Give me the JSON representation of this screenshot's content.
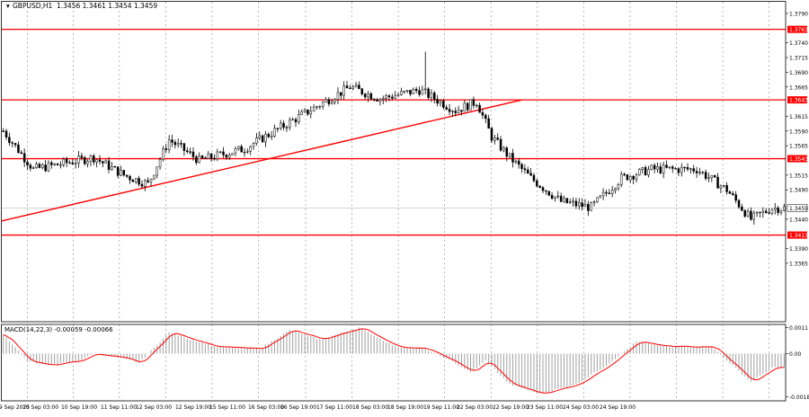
{
  "header": {
    "symbol_label": "GBPUSD,H1",
    "ohlc_label": "1.3456 1.3461 1.3454 1.3459"
  },
  "indicator": {
    "label": "MACD(14,22,3) -0.00059 -0.00066"
  },
  "colors": {
    "level": "#ff0000",
    "candle": "#000000",
    "grid": "#8c8c8c",
    "price_badge": "#ffffff",
    "level_badge": "#ff0000",
    "signal": "#ff0000",
    "histogram": "#a0a0a0"
  },
  "chart_data": [
    {
      "type": "candlestick",
      "symbol": "GBPUSD",
      "timeframe": "H1",
      "ylim": [
        1.3365,
        1.379
      ],
      "y_ticks": [
        1.379,
        1.374,
        1.3715,
        1.369,
        1.3665,
        1.3615,
        1.359,
        1.3565,
        1.3515,
        1.349,
        1.344,
        1.339,
        1.3365
      ],
      "x_ticks": [
        "9 Sep 2025",
        "10 Sep 03:00",
        "10 Sep 19:00",
        "11 Sep 11:00",
        "12 Sep 03:00",
        "12 Sep 19:00",
        "15 Sep 11:00",
        "16 Sep 03:00",
        "16 Sep 19:00",
        "17 Sep 11:00",
        "18 Sep 03:00",
        "18 Sep 19:00",
        "19 Sep 11:00",
        "22 Sep 03:00",
        "22 Sep 19:00",
        "23 Sep 11:00",
        "24 Sep 03:00",
        "24 Sep 19:00"
      ],
      "current_price": 1.3459,
      "current_price_label": "1.3459",
      "levels": [
        {
          "value": 1.3763,
          "label": "1.3763"
        },
        {
          "value": 1.3643,
          "label": "1.3643"
        },
        {
          "value": 1.3543,
          "label": "1.3543"
        },
        {
          "value": 1.3413,
          "label": "1.3413"
        }
      ],
      "trendline": {
        "from": {
          "bar": 0,
          "price": 1.3437
        },
        "to": {
          "bar": 172,
          "price": 1.3643
        }
      },
      "waypoints": [
        [
          0,
          1.359
        ],
        [
          10,
          1.3525
        ],
        [
          30,
          1.3545
        ],
        [
          40,
          1.3515
        ],
        [
          48,
          1.35
        ],
        [
          55,
          1.3575
        ],
        [
          65,
          1.354
        ],
        [
          80,
          1.356
        ],
        [
          95,
          1.3605
        ],
        [
          115,
          1.3665
        ],
        [
          125,
          1.3645
        ],
        [
          138,
          1.366
        ],
        [
          150,
          1.3625
        ],
        [
          157,
          1.364
        ],
        [
          162,
          1.358
        ],
        [
          168,
          1.3545
        ],
        [
          175,
          1.351
        ],
        [
          185,
          1.347
        ],
        [
          195,
          1.346
        ],
        [
          205,
          1.351
        ],
        [
          215,
          1.3525
        ],
        [
          230,
          1.3525
        ],
        [
          240,
          1.349
        ],
        [
          248,
          1.344
        ],
        [
          255,
          1.3459
        ]
      ],
      "spikes": [
        {
          "bar": 140,
          "high": 1.3725
        }
      ]
    },
    {
      "type": "macd",
      "label": "MACD(14,22,3)",
      "macd_value": -0.00059,
      "signal_value": -0.00066,
      "ylim": [
        -0.00182,
        0.0011
      ],
      "y_ticks": [
        {
          "value": 0.0011,
          "label": "0.0011"
        },
        {
          "value": 0.0,
          "label": "0.00"
        },
        {
          "value": -0.00182,
          "label": "-0.00182"
        }
      ],
      "waypoints": [
        [
          0,
          0.0008
        ],
        [
          8,
          -0.0003
        ],
        [
          15,
          -0.0005
        ],
        [
          25,
          -0.0003
        ],
        [
          30,
          0.0
        ],
        [
          40,
          -0.0002
        ],
        [
          45,
          -0.0004
        ],
        [
          55,
          0.0009
        ],
        [
          70,
          0.0003
        ],
        [
          85,
          0.0002
        ],
        [
          95,
          0.001
        ],
        [
          105,
          0.0006
        ],
        [
          118,
          0.0011
        ],
        [
          130,
          0.0003
        ],
        [
          140,
          0.0002
        ],
        [
          150,
          -0.0004
        ],
        [
          155,
          -0.0008
        ],
        [
          160,
          -0.0003
        ],
        [
          168,
          -0.0013
        ],
        [
          178,
          -0.0017
        ],
        [
          190,
          -0.0013
        ],
        [
          200,
          -0.0005
        ],
        [
          210,
          0.0005
        ],
        [
          220,
          0.0003
        ],
        [
          235,
          0.0003
        ],
        [
          248,
          -0.0012
        ],
        [
          255,
          -0.0006
        ]
      ]
    }
  ]
}
